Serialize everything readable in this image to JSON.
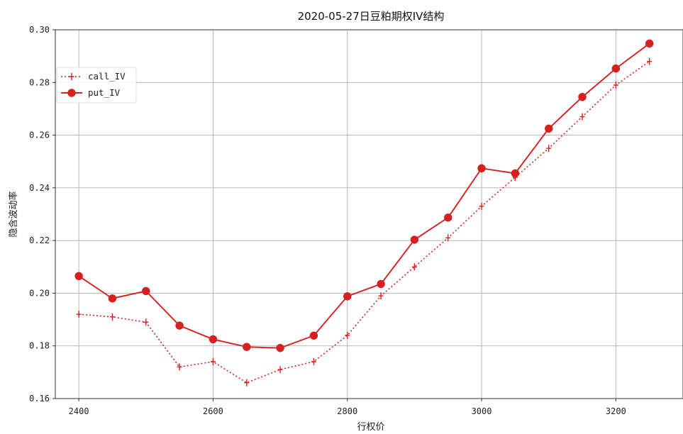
{
  "chart_data": {
    "type": "line",
    "title": "2020-05-27日豆粕期权IV结构",
    "xlabel": "行权价",
    "ylabel": "隐含波动率",
    "xlim": [
      2365,
      3300
    ],
    "ylim": [
      0.16,
      0.3
    ],
    "xticks": [
      2400,
      2600,
      2800,
      3000,
      3200
    ],
    "xtick_labels": [
      "2400",
      "2600",
      "2800",
      "3000",
      "3200"
    ],
    "yticks": [
      0.16,
      0.18,
      0.2,
      0.22,
      0.24,
      0.26,
      0.28,
      0.3
    ],
    "ytick_labels": [
      "0.16",
      "0.18",
      "0.20",
      "0.22",
      "0.24",
      "0.26",
      "0.28",
      "0.30"
    ],
    "grid": true,
    "legend_position": "upper-left",
    "x": [
      2400,
      2450,
      2500,
      2550,
      2600,
      2650,
      2700,
      2750,
      2800,
      2850,
      2900,
      2950,
      3000,
      3050,
      3100,
      3150,
      3200,
      3250
    ],
    "series": [
      {
        "name": "call_IV",
        "style": "dotted",
        "marker": "plus",
        "color": "#d62020",
        "values": [
          0.192,
          0.191,
          0.189,
          0.172,
          0.174,
          0.166,
          0.171,
          0.174,
          0.184,
          0.199,
          0.21,
          0.221,
          0.233,
          0.244,
          0.255,
          0.267,
          0.279,
          0.288
        ]
      },
      {
        "name": "put_IV",
        "style": "solid",
        "marker": "circle",
        "color": "#d62020",
        "values": [
          0.2065,
          0.198,
          0.2008,
          0.1877,
          0.1825,
          0.1796,
          0.1792,
          0.1839,
          0.1988,
          0.2035,
          0.2203,
          0.2287,
          0.2474,
          0.2455,
          0.2625,
          0.2745,
          0.2853,
          0.2948
        ]
      }
    ]
  }
}
